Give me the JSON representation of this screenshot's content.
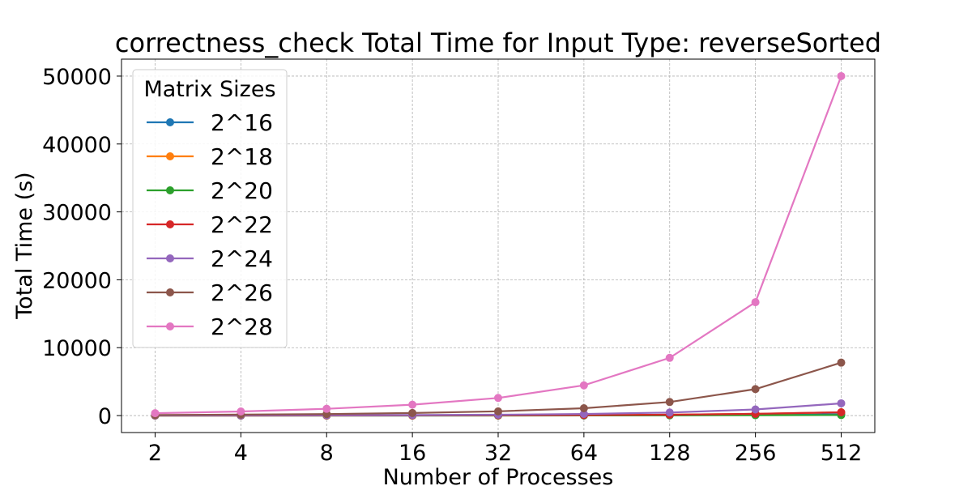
{
  "chart_data": {
    "type": "line",
    "title": "correctness_check Total Time for Input Type: reverseSorted",
    "xlabel": "Number of Processes",
    "ylabel": "Total Time (s)",
    "x_categories": [
      "2",
      "4",
      "8",
      "16",
      "32",
      "64",
      "128",
      "256",
      "512"
    ],
    "y_ticks": [
      0,
      10000,
      20000,
      30000,
      40000,
      50000
    ],
    "y_tick_labels": [
      "0",
      "10000",
      "20000",
      "30000",
      "40000",
      "50000"
    ],
    "ylim": [
      -2500,
      52500
    ],
    "grid": true,
    "legend": {
      "title": "Matrix Sizes",
      "position": "top-left"
    },
    "series": [
      {
        "name": "2^16",
        "color": "#1f77b4",
        "values": [
          1,
          2,
          4,
          8,
          15,
          25,
          50,
          100,
          200
        ]
      },
      {
        "name": "2^18",
        "color": "#ff7f0e",
        "values": [
          2,
          4,
          8,
          15,
          30,
          60,
          120,
          240,
          480
        ]
      },
      {
        "name": "2^20",
        "color": "#2ca02c",
        "values": [
          1,
          2,
          3,
          5,
          10,
          18,
          35,
          55,
          75
        ]
      },
      {
        "name": "2^22",
        "color": "#d62728",
        "values": [
          5,
          8,
          15,
          25,
          45,
          70,
          120,
          250,
          480
        ]
      },
      {
        "name": "2^24",
        "color": "#9467bd",
        "values": [
          20,
          30,
          50,
          80,
          120,
          230,
          450,
          900,
          1800
        ]
      },
      {
        "name": "2^26",
        "color": "#8c564b",
        "values": [
          80,
          150,
          220,
          380,
          620,
          1080,
          2000,
          3900,
          7800
        ]
      },
      {
        "name": "2^28",
        "color": "#e377c2",
        "values": [
          350,
          600,
          1000,
          1600,
          2600,
          4450,
          8500,
          16700,
          50000
        ]
      }
    ]
  }
}
